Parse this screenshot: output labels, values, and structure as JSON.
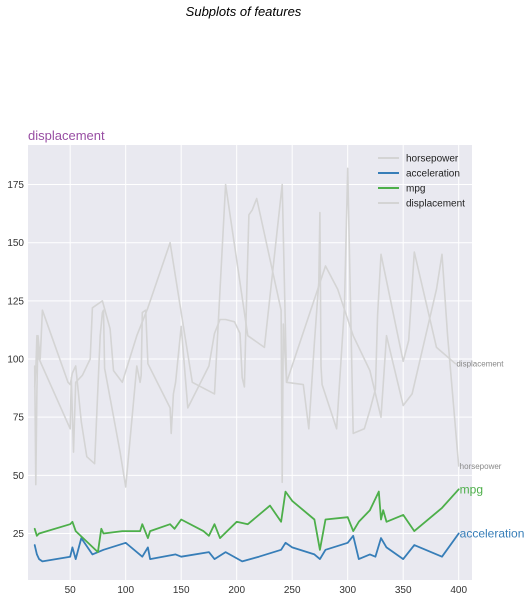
{
  "chart_data": {
    "type": "line",
    "title": "Subplots of features",
    "axes_title": "displacement",
    "axes_title_color": "#984ea3",
    "xlim": [
      12,
      412
    ],
    "ylim": [
      5,
      192
    ],
    "xticks": [
      50,
      100,
      150,
      200,
      250,
      300,
      350,
      400
    ],
    "yticks": [
      25,
      50,
      75,
      100,
      125,
      150,
      175
    ],
    "grid": true,
    "legend_position": "upper right",
    "series": [
      {
        "name": "horsepower",
        "color": "#d4d4d4",
        "width": 1.6,
        "end_label": "horsepower",
        "end_label_size": 8,
        "x": [
          18,
          19,
          20,
          22,
          50,
          51,
          53,
          55,
          61,
          68,
          70,
          79,
          86,
          89,
          97,
          110,
          120,
          140,
          150,
          160,
          180,
          190,
          210,
          225,
          241,
          245,
          280,
          291,
          305,
          320,
          330,
          335,
          350,
          358,
          380,
          385,
          390,
          400
        ],
        "y": [
          88,
          95,
          110,
          100,
          70,
          92,
          60,
          90,
          93,
          100,
          122,
          125,
          113,
          95,
          90,
          110,
          122,
          150,
          120,
          90,
          85,
          175,
          110,
          105,
          175,
          90,
          140,
          130,
          110,
          95,
          75,
          110,
          80,
          85,
          130,
          145,
          110,
          54
        ]
      },
      {
        "name": "acceleration",
        "color": "#377eb8",
        "width": 1.8,
        "end_label": "acceleration",
        "end_label_size": 12,
        "x": [
          18,
          20,
          22,
          25,
          50,
          52,
          55,
          60,
          70,
          80,
          100,
          115,
          120,
          122,
          145,
          150,
          175,
          180,
          190,
          205,
          220,
          240,
          244,
          250,
          270,
          275,
          280,
          300,
          305,
          310,
          320,
          325,
          330,
          335,
          350,
          360,
          385,
          400
        ],
        "y": [
          20,
          16,
          14,
          13,
          15,
          19,
          14,
          23,
          16,
          18,
          21,
          15,
          19,
          14,
          16,
          15,
          17,
          14,
          17,
          13,
          15,
          18,
          21,
          19,
          16,
          14,
          18,
          21,
          24,
          14,
          16,
          15,
          23,
          19,
          14,
          20,
          15,
          25
        ]
      },
      {
        "name": "mpg",
        "color": "#4daf4a",
        "width": 1.8,
        "end_label": "mpg",
        "end_label_size": 12,
        "x": [
          18,
          20,
          22,
          50,
          52,
          55,
          75,
          78,
          80,
          97,
          113,
          115,
          120,
          122,
          140,
          144,
          150,
          170,
          175,
          180,
          185,
          200,
          210,
          230,
          240,
          244,
          250,
          270,
          275,
          280,
          300,
          305,
          310,
          320,
          328,
          330,
          332,
          335,
          350,
          360,
          385,
          400
        ],
        "y": [
          27,
          24,
          25,
          29,
          30,
          26,
          17,
          27,
          25,
          26,
          26,
          29,
          23,
          26,
          29,
          27,
          31,
          26,
          24,
          29,
          23,
          30,
          29,
          37,
          30,
          43,
          39,
          31,
          18,
          31,
          32,
          26,
          30,
          35,
          43,
          31,
          35,
          30,
          33,
          26,
          36,
          44
        ]
      },
      {
        "name": "displacement",
        "color": "#d4d4d4",
        "width": 1.6,
        "end_label": "displacement",
        "end_label_size": 8,
        "x": [
          18,
          19,
          20,
          21,
          23,
          25,
          48,
          50,
          52,
          55,
          60,
          65,
          72,
          77,
          79,
          80,
          81,
          95,
          100,
          110,
          113,
          114,
          115,
          118,
          120,
          140,
          141,
          143,
          145,
          150,
          156,
          175,
          180,
          185,
          190,
          198,
          203,
          205,
          207,
          209,
          211,
          214,
          218,
          240,
          241,
          242,
          245,
          260,
          265,
          270,
          274,
          275,
          276,
          277,
          290,
          297,
          300,
          305,
          315,
          320,
          325,
          327,
          330,
          350,
          355,
          360,
          380,
          397
        ],
        "y": [
          97,
          46,
          86,
          110,
          100,
          121,
          90,
          89,
          94,
          97,
          73,
          58,
          55,
          110,
          120,
          121,
          96,
          60,
          45,
          97,
          90,
          93,
          120,
          121,
          98,
          79,
          68,
          85,
          90,
          114,
          79,
          97,
          111,
          117,
          117,
          116,
          111,
          92,
          88,
          128,
          162,
          164,
          169,
          121,
          47,
          115,
          90,
          89,
          70,
          107,
          133,
          163,
          97,
          89,
          70,
          122,
          182,
          68,
          70,
          78,
          87,
          119,
          145,
          99,
          108,
          146,
          105,
          98
        ]
      }
    ]
  }
}
